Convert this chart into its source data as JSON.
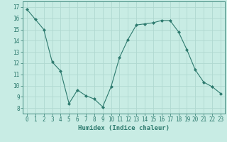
{
  "x": [
    0,
    1,
    2,
    3,
    4,
    5,
    6,
    7,
    8,
    9,
    10,
    11,
    12,
    13,
    14,
    15,
    16,
    17,
    18,
    19,
    20,
    21,
    22,
    23
  ],
  "y": [
    16.8,
    15.9,
    15.0,
    12.1,
    11.3,
    8.4,
    9.6,
    9.1,
    8.8,
    8.1,
    9.9,
    12.5,
    14.1,
    15.4,
    15.5,
    15.6,
    15.8,
    15.8,
    14.8,
    13.2,
    11.4,
    10.3,
    9.9,
    9.3
  ],
  "line_color": "#2d7a6e",
  "marker": "D",
  "marker_size": 2.0,
  "bg_color": "#c8ece4",
  "grid_color": "#b0d8d0",
  "xlabel": "Humidex (Indice chaleur)",
  "xlim": [
    -0.5,
    23.5
  ],
  "ylim": [
    7.5,
    17.5
  ],
  "xticks": [
    0,
    1,
    2,
    3,
    4,
    5,
    6,
    7,
    8,
    9,
    10,
    11,
    12,
    13,
    14,
    15,
    16,
    17,
    18,
    19,
    20,
    21,
    22,
    23
  ],
  "yticks": [
    8,
    9,
    10,
    11,
    12,
    13,
    14,
    15,
    16,
    17
  ],
  "tick_color": "#2d7a6e",
  "label_color": "#2d7a6e",
  "axis_color": "#2d7a6e",
  "tick_fontsize": 5.5,
  "xlabel_fontsize": 6.5
}
